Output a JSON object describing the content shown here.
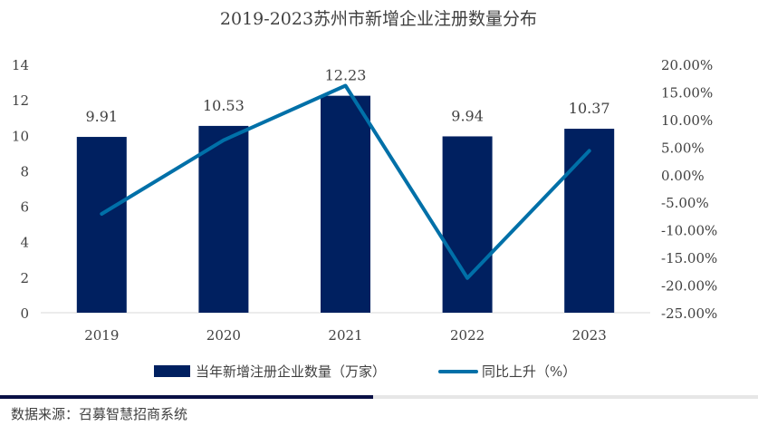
{
  "chart_data": {
    "type": "bar+line",
    "title": "2019-2023苏州市新增企业注册数量分布",
    "categories": [
      "2019",
      "2020",
      "2021",
      "2022",
      "2023"
    ],
    "series": [
      {
        "name": "当年新增注册企业数量（万家）",
        "type": "bar",
        "axis": "left",
        "values": [
          9.91,
          10.53,
          12.23,
          9.94,
          10.37
        ],
        "color": "#002060"
      },
      {
        "name": "同比上升（%）",
        "type": "line",
        "axis": "right",
        "values": [
          -7.1,
          6.26,
          16.14,
          -18.72,
          4.33
        ],
        "color": "#0070a8"
      }
    ],
    "data_labels": [
      "9.91",
      "10.53",
      "12.23",
      "9.94",
      "10.37"
    ],
    "left_axis": {
      "ylim": [
        0,
        14
      ],
      "ticks": [
        "0",
        "2",
        "4",
        "6",
        "8",
        "10",
        "12",
        "14"
      ]
    },
    "right_axis": {
      "ylim": [
        -25,
        20
      ],
      "ticks": [
        "20.00%",
        "15.00%",
        "10.00%",
        "5.00%",
        "0.00%",
        "-5.00%",
        "-10.00%",
        "-15.00%",
        "-20.00%",
        "-25.00%"
      ]
    },
    "grid": false,
    "legend_position": "bottom"
  },
  "footer": {
    "source": "数据来源：召募智慧招商系统",
    "bar_color_dark": "#0a1045",
    "bar_color_light": "#e6e6e6"
  }
}
